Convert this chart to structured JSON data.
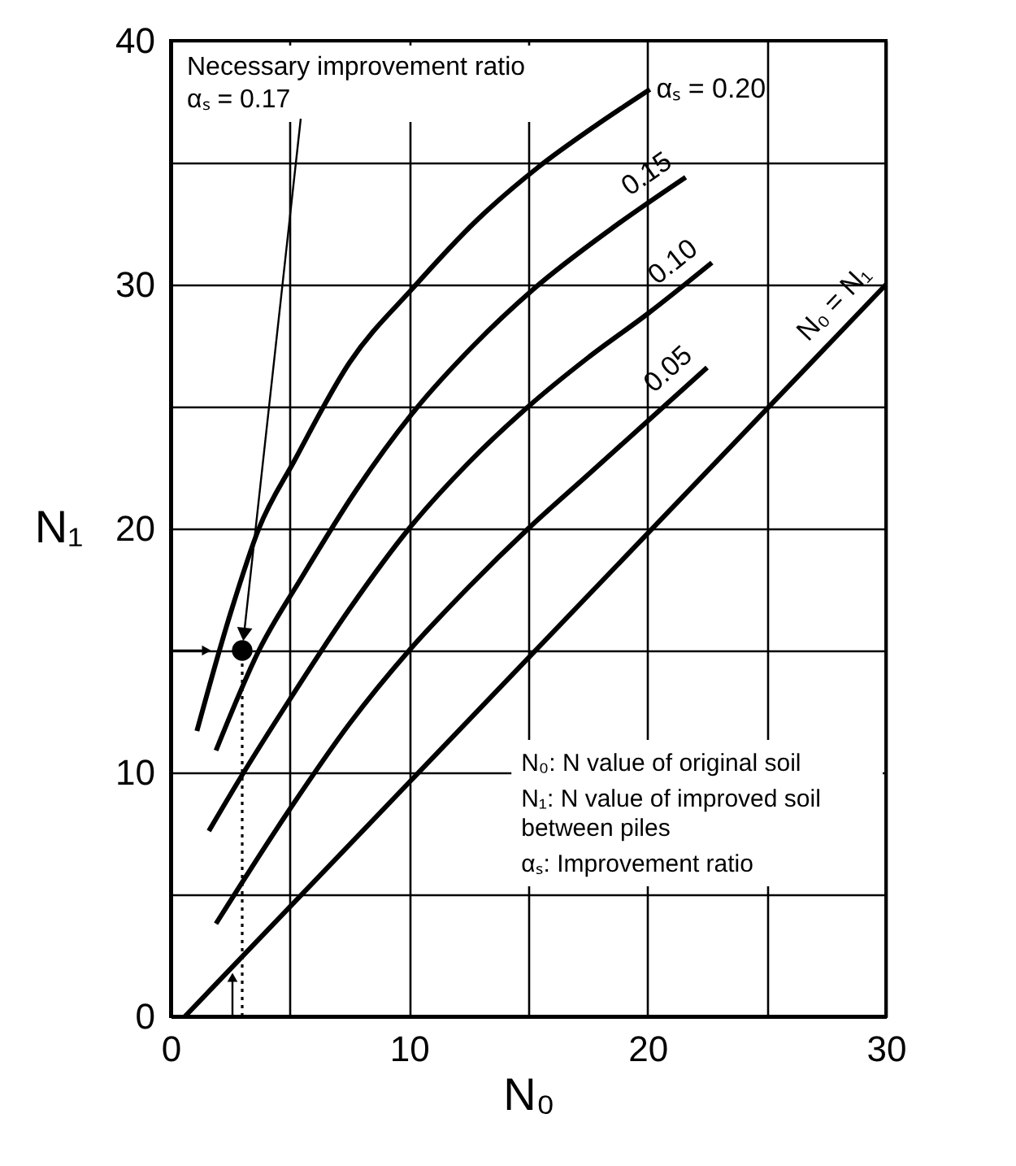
{
  "chart_data": {
    "type": "line",
    "xlabel": "N₀",
    "ylabel": "N₁",
    "xlim": [
      0,
      30
    ],
    "ylim": [
      0,
      40
    ],
    "xticks": [
      0,
      {
        "value": 5,
        "label": null
      },
      10,
      {
        "value": 15,
        "label": null
      },
      20,
      {
        "value": 25,
        "label": null
      },
      30
    ],
    "yticks": [
      0,
      {
        "value": 5,
        "label": null
      },
      10,
      {
        "value": 15,
        "label": null
      },
      20,
      {
        "value": 25,
        "label": null
      },
      30,
      {
        "value": 35,
        "label": null
      },
      40
    ],
    "grid": true,
    "marker": "none",
    "line_style": "solid",
    "series": [
      {
        "name": "αₛ = 0.20",
        "color": "#000000",
        "x": [
          1.1,
          2.5,
          3.7,
          5.2,
          7.5,
          10.2,
          12.8,
          15.4,
          17.8,
          20.1
        ],
        "values": [
          11.7,
          16.5,
          20,
          22.8,
          26.8,
          29.9,
          32.6,
          34.8,
          36.5,
          38
        ]
      },
      {
        "name": "0.15",
        "color": "#000000",
        "x": [
          1.9,
          3.7,
          5.5,
          7.8,
          10.2,
          12.7,
          15.2,
          18.5,
          21.6
        ],
        "values": [
          10.9,
          15,
          18,
          21.6,
          24.8,
          27.5,
          29.8,
          32.3,
          34.4
        ]
      },
      {
        "name": "0.10",
        "color": "#000000",
        "x": [
          1.6,
          3,
          5,
          7.5,
          10,
          12.5,
          15,
          17.5,
          20,
          22.7
        ],
        "values": [
          7.6,
          9.9,
          13,
          16.7,
          20,
          22.7,
          25,
          27,
          28.8,
          30.9
        ]
      },
      {
        "name": "0.05",
        "color": "#000000",
        "x": [
          1.9,
          5,
          7.5,
          10,
          12.5,
          15,
          17.5,
          20,
          22.5
        ],
        "values": [
          3.8,
          8.5,
          12,
          15,
          17.6,
          20,
          22.2,
          24.4,
          26.6
        ]
      },
      {
        "name": "N₀ = N₁",
        "color": "#000000",
        "x": [
          0.6,
          30
        ],
        "values": [
          0,
          30
        ]
      },
      {
        "type": "line",
        "line_style": "dotted",
        "color": "#000000",
        "x": [
          3,
          3
        ],
        "values": [
          0,
          15
        ]
      },
      {
        "type": "scatter",
        "marker": "circle",
        "color": "#000000",
        "x": [
          3
        ],
        "values": [
          15
        ]
      }
    ],
    "annotations": [
      "Necessary improvement ratio αₛ = 0.17",
      "N₀: N value of original soil",
      "N₁: N value of improved soil between piles",
      "αₛ: Improvement ratio"
    ]
  }
}
